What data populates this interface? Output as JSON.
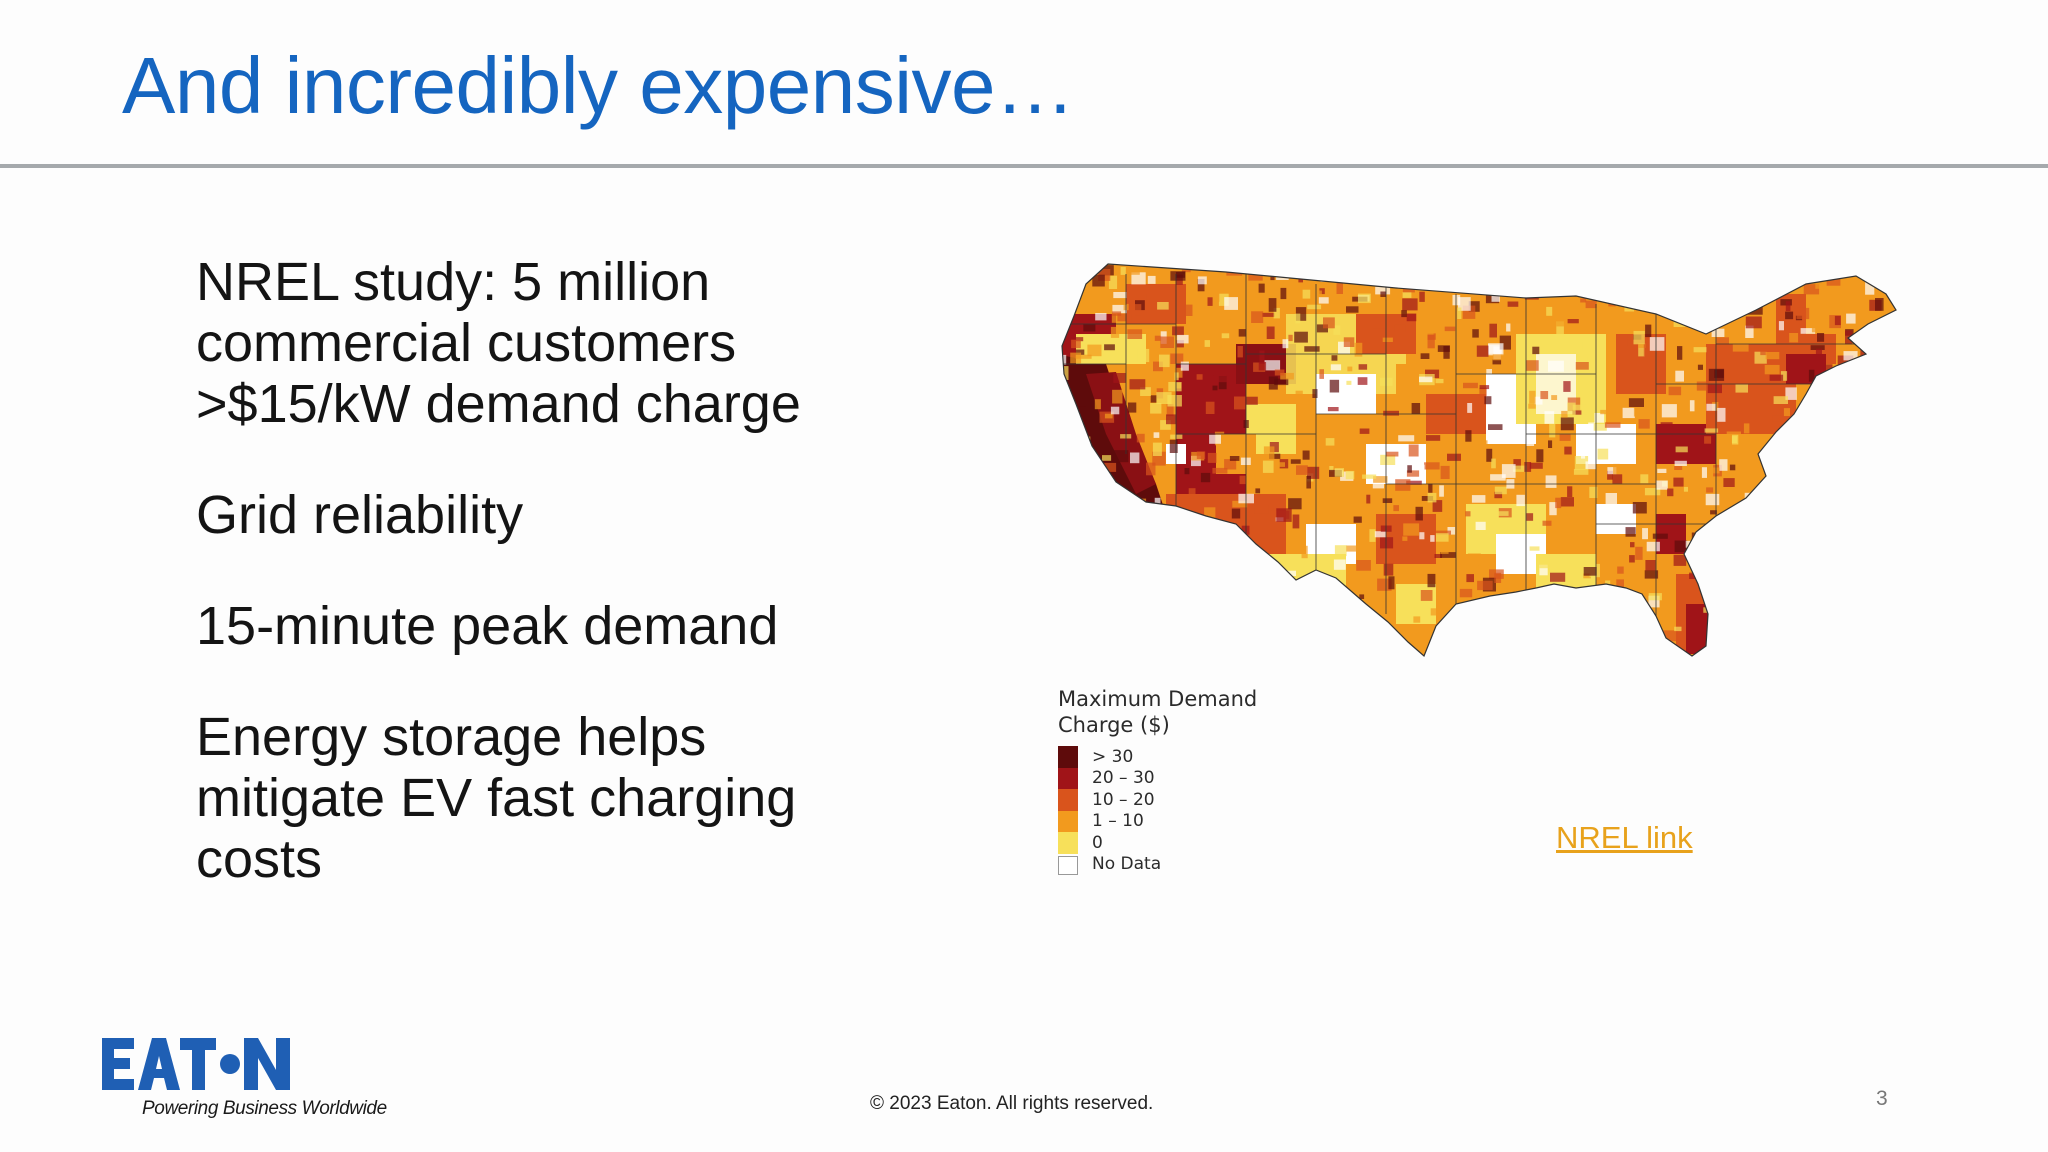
{
  "slide": {
    "title": "And incredibly expensive…",
    "bullets": [
      "NREL study: 5 million\ncommercial customers\n>$15/kW demand charge",
      "Grid reliability",
      "15-minute peak demand",
      "Energy storage helps\nmitigate EV fast charging\ncosts"
    ],
    "map": {
      "legend_title": "Maximum Demand Charge ($)",
      "legend_items": [
        {
          "label": "> 30",
          "color": "#5e0b0b"
        },
        {
          "label": "20 – 30",
          "color": "#a01418"
        },
        {
          "label": "10 – 20",
          "color": "#d9541c"
        },
        {
          "label": "1 – 10",
          "color": "#f29a1e"
        },
        {
          "label": "0",
          "color": "#f7e05a"
        },
        {
          "label": "No Data",
          "color": "#ffffff"
        }
      ]
    },
    "link_text": "NREL link",
    "logo_text": "EATON",
    "tagline": "Powering Business Worldwide",
    "copyright": "© 2023 Eaton. All rights reserved.",
    "page_number": "3"
  },
  "colors": {
    "title": "#1565c0",
    "link": "#e8a21c",
    "brand": "#1f5fb4"
  }
}
